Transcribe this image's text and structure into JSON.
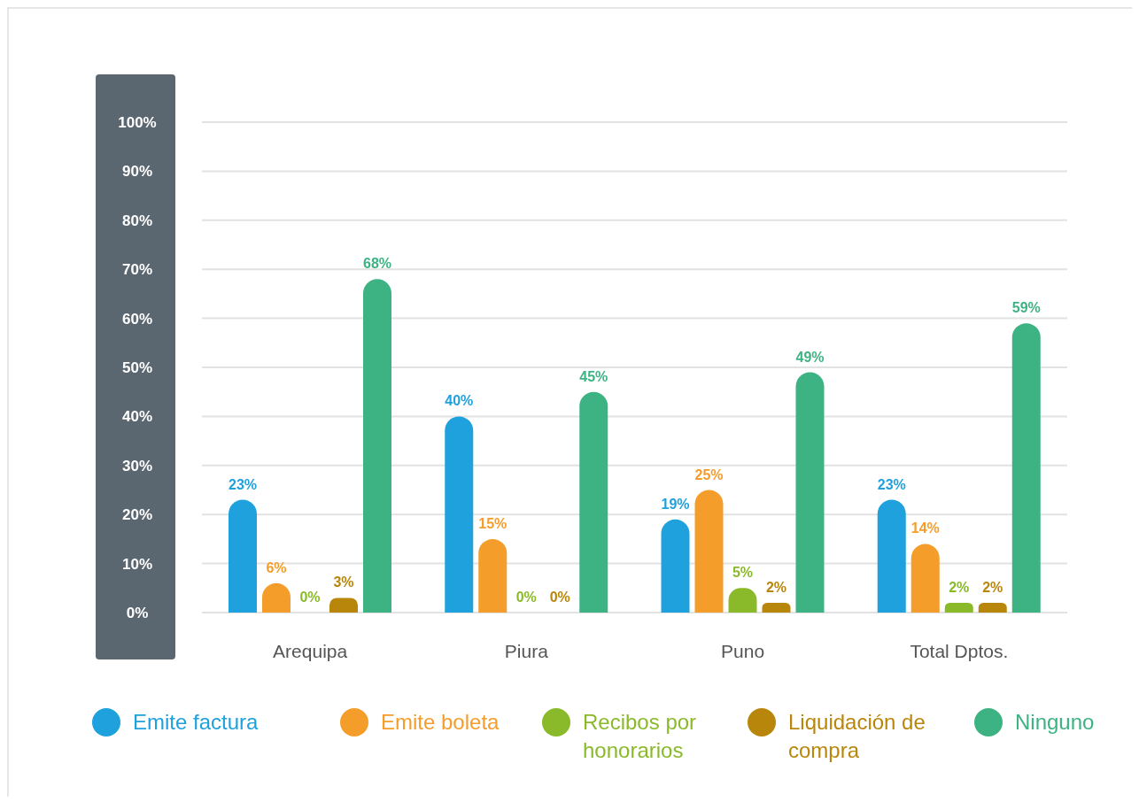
{
  "chart_data": {
    "type": "bar",
    "categories": [
      "Arequipa",
      "Piura",
      "Puno",
      "Total Dptos."
    ],
    "series": [
      {
        "name": "Emite factura",
        "color": "#1ea1dc",
        "values": [
          23,
          40,
          19,
          23
        ],
        "value_labels": [
          "23%",
          "40%",
          "19%",
          "23%"
        ]
      },
      {
        "name": "Emite boleta",
        "color": "#f59d2a",
        "values": [
          6,
          15,
          25,
          14
        ],
        "value_labels": [
          "6%",
          "15%",
          "25%",
          "14%"
        ]
      },
      {
        "name": "Recibos por honorarios",
        "color": "#8aba2a",
        "values": [
          0,
          0,
          5,
          2
        ],
        "value_labels": [
          "0%",
          "0%",
          "5%",
          "2%"
        ]
      },
      {
        "name": "Liquidación de compra",
        "color": "#b8860b",
        "values": [
          3,
          0,
          2,
          2
        ],
        "value_labels": [
          "3%",
          "0%",
          "2%",
          "2%"
        ]
      },
      {
        "name": "Ninguno",
        "color": "#3db384",
        "values": [
          68,
          45,
          49,
          59
        ],
        "value_labels": [
          "68%",
          "45%",
          "49%",
          "59%"
        ]
      }
    ],
    "ylim": [
      0,
      100
    ],
    "yticks": [
      {
        "value": 0,
        "label": "0%"
      },
      {
        "value": 10,
        "label": "10%"
      },
      {
        "value": 20,
        "label": "20%"
      },
      {
        "value": 30,
        "label": "30%"
      },
      {
        "value": 40,
        "label": "40%"
      },
      {
        "value": 50,
        "label": "50%"
      },
      {
        "value": 60,
        "label": "60%"
      },
      {
        "value": 70,
        "label": "70%"
      },
      {
        "value": 80,
        "label": "80%"
      },
      {
        "value": 90,
        "label": "90%"
      },
      {
        "value": 100,
        "label": "100%"
      }
    ],
    "grid": "y",
    "legend": "bottom"
  }
}
